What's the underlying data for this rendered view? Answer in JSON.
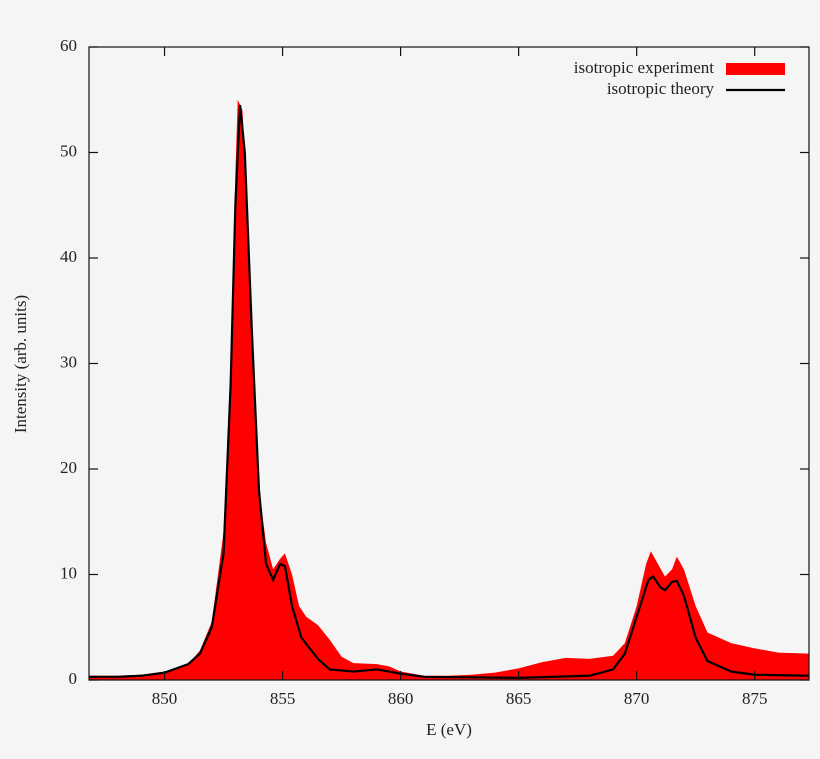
{
  "chart_data": {
    "type": "line",
    "x_label": "E (eV)",
    "y_label": "Intensity (arb. units)",
    "xlim": [
      846.8,
      877.3
    ],
    "ylim": [
      0,
      60
    ],
    "xticks": [
      850,
      855,
      860,
      865,
      870,
      875
    ],
    "yticks": [
      0,
      10,
      20,
      30,
      40,
      50,
      60
    ],
    "legend": "top-right",
    "series": [
      {
        "name": "isotropic experiment",
        "style": "area",
        "color": "#ff0000",
        "x": [
          846.8,
          848,
          849,
          850,
          851,
          851.5,
          852,
          852.5,
          852.8,
          853,
          853.1,
          853.3,
          853.5,
          853.8,
          854,
          854.3,
          854.6,
          854.9,
          855.1,
          855.4,
          855.7,
          856,
          856.5,
          857,
          857.5,
          858,
          859,
          859.5,
          860,
          861,
          862,
          863,
          864,
          865,
          866,
          867,
          868,
          869,
          869.5,
          870,
          870.4,
          870.6,
          870.9,
          871.2,
          871.5,
          871.7,
          872,
          872.5,
          873,
          874,
          875,
          876,
          877.3
        ],
        "values": [
          0.4,
          0.4,
          0.5,
          0.7,
          1.5,
          2.8,
          5.5,
          14,
          30,
          48,
          55,
          54,
          46,
          28,
          18,
          13,
          10.5,
          11.5,
          12,
          10,
          7,
          6,
          5.2,
          3.8,
          2.2,
          1.6,
          1.5,
          1.3,
          0.8,
          0.4,
          0.4,
          0.5,
          0.7,
          1.1,
          1.7,
          2.1,
          2.0,
          2.3,
          3.5,
          7,
          11,
          12.2,
          11,
          9.8,
          10.5,
          11.7,
          10.5,
          7,
          4.5,
          3.5,
          3.0,
          2.6,
          2.5
        ]
      },
      {
        "name": "isotropic theory",
        "style": "line",
        "color": "#000000",
        "x": [
          846.8,
          848,
          849,
          850,
          851,
          851.5,
          852,
          852.5,
          852.8,
          853,
          853.2,
          853.4,
          853.7,
          854,
          854.3,
          854.6,
          854.9,
          855.1,
          855.4,
          855.8,
          856.5,
          857,
          858,
          859,
          860,
          861,
          865,
          868,
          869,
          869.5,
          870,
          870.5,
          870.7,
          871,
          871.2,
          871.5,
          871.7,
          872,
          872.5,
          873,
          874,
          875,
          877.3
        ],
        "values": [
          0.3,
          0.3,
          0.4,
          0.7,
          1.5,
          2.5,
          5,
          12,
          28,
          45,
          54.5,
          50,
          33,
          18,
          11,
          9.5,
          11,
          10.8,
          7,
          4,
          2,
          1,
          0.8,
          1.0,
          0.6,
          0.3,
          0.2,
          0.4,
          1,
          2.5,
          6,
          9.5,
          9.8,
          8.8,
          8.5,
          9.3,
          9.4,
          8,
          4,
          1.8,
          0.8,
          0.5,
          0.4
        ]
      }
    ]
  }
}
